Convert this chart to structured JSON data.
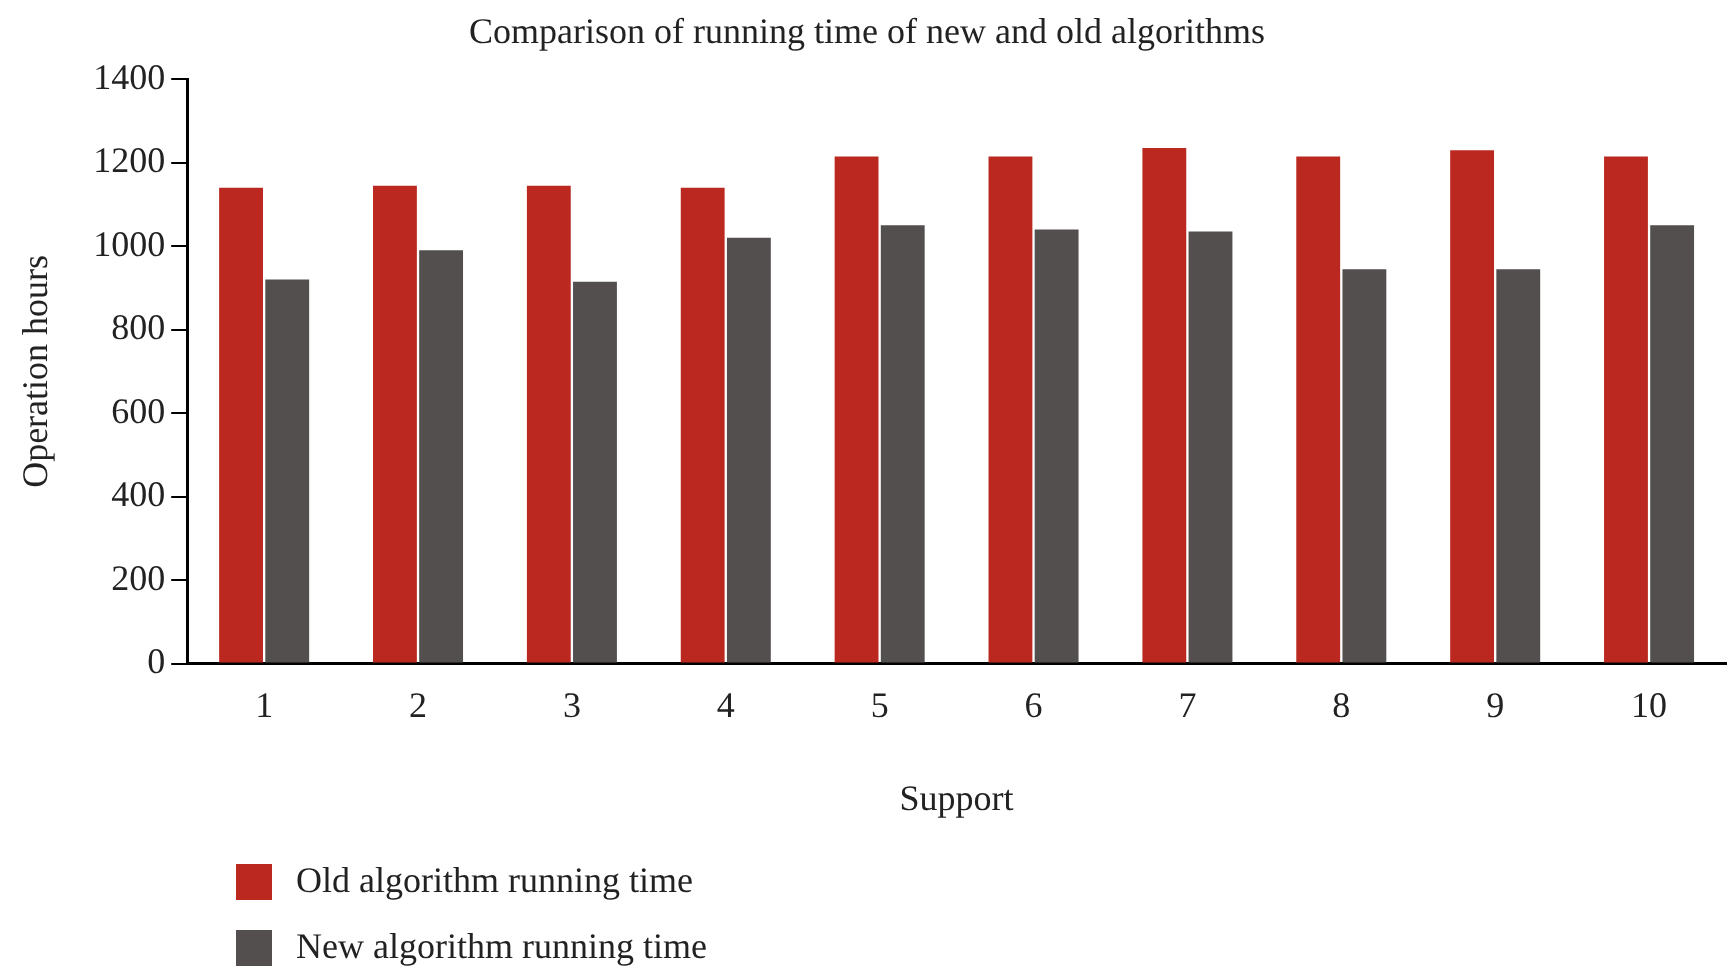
{
  "chart_data": {
    "type": "bar",
    "title": "Comparison of running time of new and old algorithms",
    "xlabel": "Support",
    "ylabel": "Operation hours",
    "categories": [
      "1",
      "2",
      "3",
      "4",
      "5",
      "6",
      "7",
      "8",
      "9",
      "10"
    ],
    "series": [
      {
        "name": "Old algorithm running time",
        "color": "#bb2820",
        "values": [
          1140,
          1145,
          1145,
          1140,
          1215,
          1215,
          1235,
          1215,
          1230,
          1215
        ]
      },
      {
        "name": "New algorithm running time",
        "color": "#524f4e",
        "values": [
          920,
          990,
          915,
          1020,
          1050,
          1040,
          1035,
          945,
          945,
          1050
        ]
      }
    ],
    "ylim": [
      0,
      1400
    ],
    "yticks": [
      0,
      200,
      400,
      600,
      800,
      1000,
      1200,
      1400
    ],
    "grid": false,
    "legend": "bottom left"
  }
}
